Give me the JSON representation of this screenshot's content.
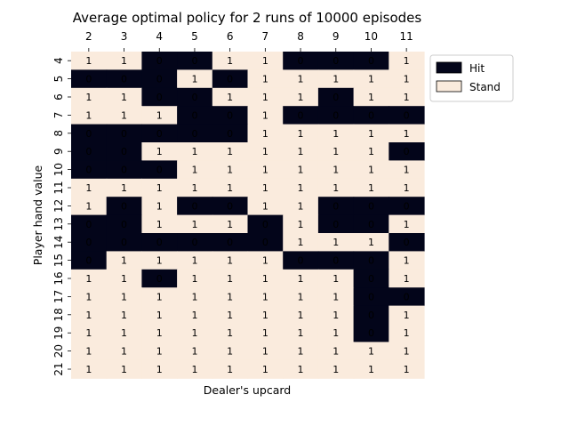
{
  "chart_data": {
    "type": "heatmap",
    "title": "Average optimal policy for 2 runs of 10000 episodes",
    "xlabel": "Dealer's upcard",
    "ylabel": "Player hand value",
    "x_categories": [
      "2",
      "3",
      "4",
      "5",
      "6",
      "7",
      "8",
      "9",
      "10",
      "11"
    ],
    "y_categories": [
      "4",
      "5",
      "6",
      "7",
      "8",
      "9",
      "10",
      "11",
      "12",
      "13",
      "14",
      "15",
      "16",
      "17",
      "18",
      "19",
      "20",
      "21"
    ],
    "values": [
      [
        1,
        1,
        0,
        0,
        1,
        1,
        0,
        0,
        0,
        1
      ],
      [
        0,
        0,
        0,
        1,
        0,
        1,
        1,
        1,
        1,
        1
      ],
      [
        1,
        1,
        0,
        0,
        1,
        1,
        1,
        0,
        1,
        1
      ],
      [
        1,
        1,
        1,
        0,
        0,
        1,
        0,
        0,
        0,
        0
      ],
      [
        0,
        0,
        0,
        0,
        0,
        1,
        1,
        1,
        1,
        1
      ],
      [
        0,
        0,
        1,
        1,
        1,
        1,
        1,
        1,
        1,
        0
      ],
      [
        0,
        0,
        0,
        1,
        1,
        1,
        1,
        1,
        1,
        1
      ],
      [
        1,
        1,
        1,
        1,
        1,
        1,
        1,
        1,
        1,
        1
      ],
      [
        1,
        0,
        1,
        0,
        0,
        1,
        1,
        0,
        0,
        0
      ],
      [
        0,
        0,
        1,
        1,
        1,
        0,
        1,
        0,
        0,
        1
      ],
      [
        0,
        0,
        0,
        0,
        0,
        0,
        1,
        1,
        1,
        0
      ],
      [
        0,
        1,
        1,
        1,
        1,
        1,
        0,
        0,
        0,
        1
      ],
      [
        1,
        1,
        0,
        1,
        1,
        1,
        1,
        1,
        0,
        1
      ],
      [
        1,
        1,
        1,
        1,
        1,
        1,
        1,
        1,
        0,
        0
      ],
      [
        1,
        1,
        1,
        1,
        1,
        1,
        1,
        1,
        0,
        1
      ],
      [
        1,
        1,
        1,
        1,
        1,
        1,
        1,
        1,
        0,
        1
      ],
      [
        1,
        1,
        1,
        1,
        1,
        1,
        1,
        1,
        1,
        1
      ],
      [
        1,
        1,
        1,
        1,
        1,
        1,
        1,
        1,
        1,
        1
      ]
    ],
    "colors": {
      "0": "#03051a",
      "1": "#faebdd"
    },
    "value_labels": true,
    "grid": false,
    "legend": {
      "placement": "outside-right",
      "entries": [
        {
          "label": "Hit",
          "value": 0,
          "color": "#03051a"
        },
        {
          "label": "Stand",
          "value": 1,
          "color": "#faebdd"
        }
      ]
    }
  }
}
